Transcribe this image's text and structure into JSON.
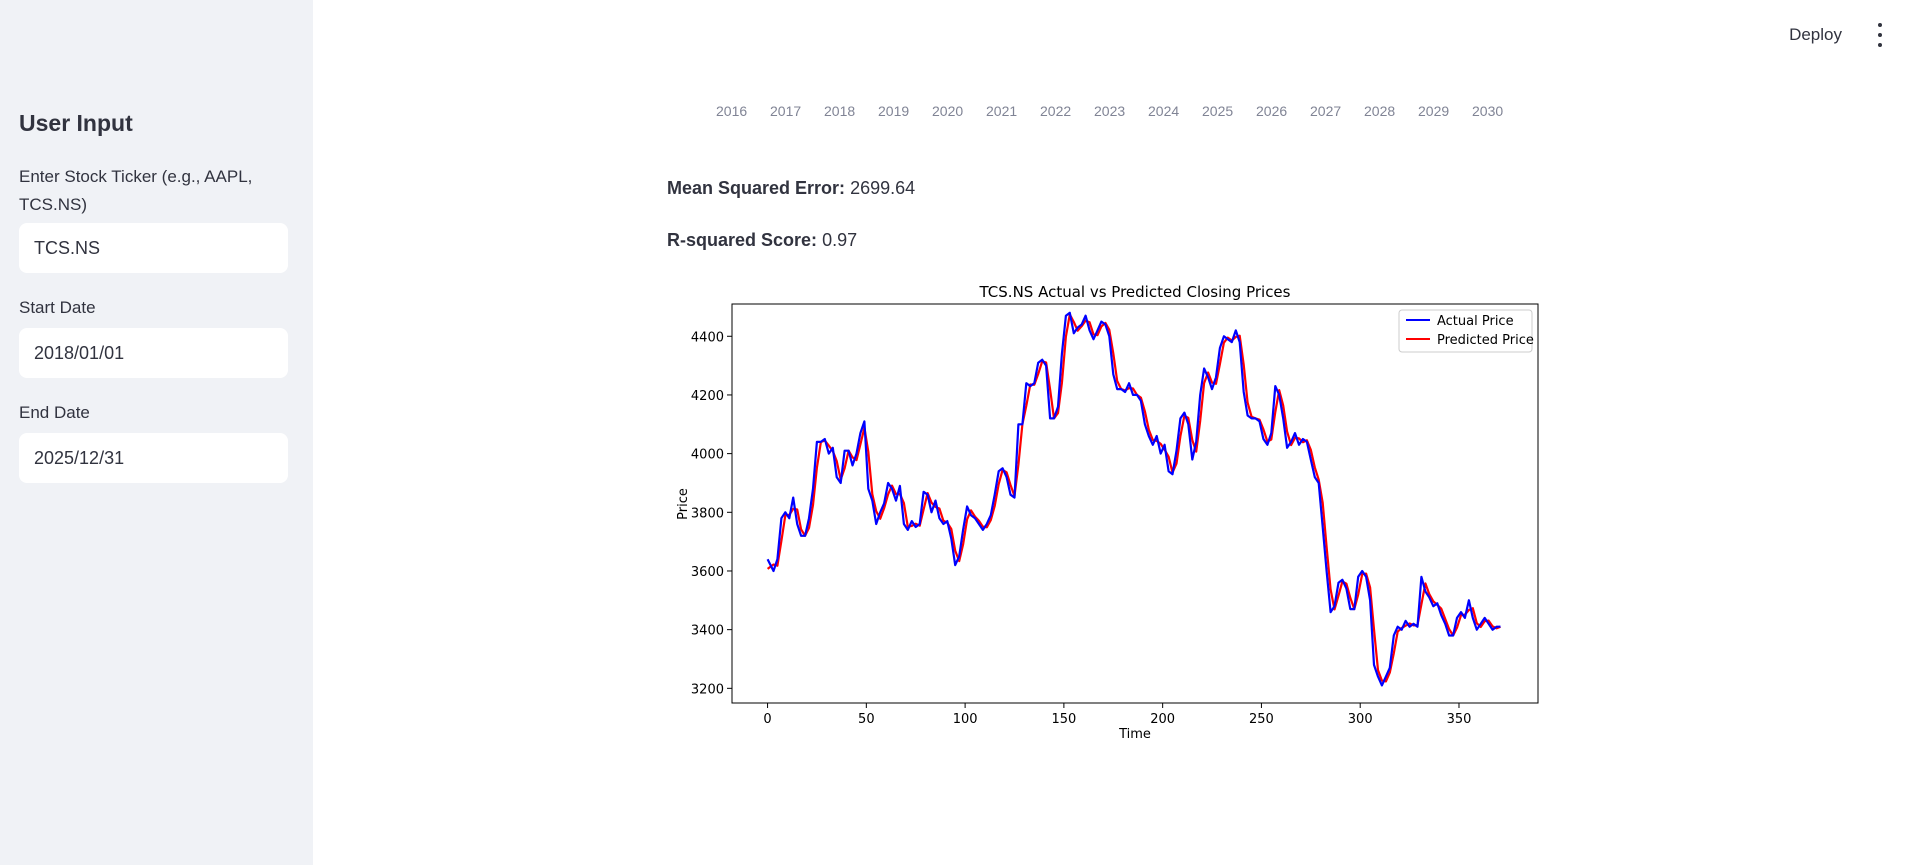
{
  "sidebar": {
    "title": "User Input",
    "ticker_label": "Enter Stock Ticker (e.g., AAPL, TCS.NS)",
    "ticker_value": "TCS.NS",
    "start_label": "Start Date",
    "start_value": "2018/01/01",
    "end_label": "End Date",
    "end_value": "2025/12/31"
  },
  "header": {
    "deploy_label": "Deploy",
    "menu_icon": "kebab-menu-icon"
  },
  "year_options": [
    "2016",
    "2017",
    "2018",
    "2019",
    "2020",
    "2021",
    "2022",
    "2023",
    "2024",
    "2025",
    "2026",
    "2027",
    "2028",
    "2029",
    "2030"
  ],
  "metrics": {
    "mse_label": "Mean Squared Error:",
    "mse_value": "2699.64",
    "r2_label": "R-squared Score:",
    "r2_value": "0.97"
  },
  "chart_data": {
    "type": "line",
    "title": "TCS.NS Actual vs Predicted Closing Prices",
    "xlabel": "Time",
    "ylabel": "Price",
    "xlim": [
      -18,
      390
    ],
    "ylim": [
      3150,
      4510
    ],
    "xticks": [
      0,
      50,
      100,
      150,
      200,
      250,
      300,
      350
    ],
    "yticks": [
      3200,
      3400,
      3600,
      3800,
      4000,
      4200,
      4400
    ],
    "legend_position": "top-right",
    "grid": false,
    "series": [
      {
        "name": "Actual Price",
        "color": "#0000ff"
      },
      {
        "name": "Predicted Price",
        "color": "#ff0000"
      }
    ],
    "actual_points": [
      [
        0,
        3640
      ],
      [
        3,
        3600
      ],
      [
        5,
        3640
      ],
      [
        7,
        3780
      ],
      [
        9,
        3800
      ],
      [
        11,
        3780
      ],
      [
        13,
        3850
      ],
      [
        15,
        3760
      ],
      [
        17,
        3720
      ],
      [
        19,
        3720
      ],
      [
        21,
        3780
      ],
      [
        23,
        3880
      ],
      [
        25,
        4040
      ],
      [
        27,
        4040
      ],
      [
        29,
        4050
      ],
      [
        31,
        4000
      ],
      [
        33,
        4020
      ],
      [
        35,
        3920
      ],
      [
        37,
        3900
      ],
      [
        39,
        4010
      ],
      [
        41,
        4010
      ],
      [
        43,
        3960
      ],
      [
        45,
        4000
      ],
      [
        47,
        4070
      ],
      [
        49,
        4110
      ],
      [
        51,
        3880
      ],
      [
        53,
        3840
      ],
      [
        55,
        3760
      ],
      [
        57,
        3800
      ],
      [
        59,
        3830
      ],
      [
        61,
        3900
      ],
      [
        63,
        3880
      ],
      [
        65,
        3840
      ],
      [
        67,
        3890
      ],
      [
        69,
        3760
      ],
      [
        71,
        3740
      ],
      [
        73,
        3770
      ],
      [
        75,
        3750
      ],
      [
        77,
        3760
      ],
      [
        79,
        3870
      ],
      [
        81,
        3860
      ],
      [
        83,
        3800
      ],
      [
        85,
        3840
      ],
      [
        87,
        3780
      ],
      [
        89,
        3760
      ],
      [
        91,
        3770
      ],
      [
        93,
        3710
      ],
      [
        95,
        3620
      ],
      [
        97,
        3650
      ],
      [
        99,
        3740
      ],
      [
        101,
        3820
      ],
      [
        103,
        3790
      ],
      [
        105,
        3780
      ],
      [
        107,
        3760
      ],
      [
        109,
        3740
      ],
      [
        111,
        3760
      ],
      [
        113,
        3790
      ],
      [
        115,
        3860
      ],
      [
        117,
        3940
      ],
      [
        119,
        3950
      ],
      [
        121,
        3920
      ],
      [
        123,
        3860
      ],
      [
        125,
        3850
      ],
      [
        127,
        4100
      ],
      [
        129,
        4100
      ],
      [
        131,
        4240
      ],
      [
        133,
        4230
      ],
      [
        135,
        4240
      ],
      [
        137,
        4310
      ],
      [
        139,
        4320
      ],
      [
        141,
        4300
      ],
      [
        143,
        4120
      ],
      [
        145,
        4120
      ],
      [
        147,
        4160
      ],
      [
        149,
        4340
      ],
      [
        151,
        4470
      ],
      [
        153,
        4480
      ],
      [
        155,
        4410
      ],
      [
        157,
        4430
      ],
      [
        159,
        4440
      ],
      [
        161,
        4470
      ],
      [
        163,
        4420
      ],
      [
        165,
        4390
      ],
      [
        167,
        4420
      ],
      [
        169,
        4450
      ],
      [
        171,
        4440
      ],
      [
        173,
        4400
      ],
      [
        175,
        4270
      ],
      [
        177,
        4220
      ],
      [
        179,
        4220
      ],
      [
        181,
        4210
      ],
      [
        183,
        4240
      ],
      [
        185,
        4200
      ],
      [
        187,
        4200
      ],
      [
        189,
        4180
      ],
      [
        191,
        4100
      ],
      [
        193,
        4060
      ],
      [
        195,
        4030
      ],
      [
        197,
        4060
      ],
      [
        199,
        4000
      ],
      [
        201,
        4030
      ],
      [
        203,
        3940
      ],
      [
        205,
        3930
      ],
      [
        207,
        4010
      ],
      [
        209,
        4120
      ],
      [
        211,
        4140
      ],
      [
        213,
        4100
      ],
      [
        215,
        3980
      ],
      [
        217,
        4040
      ],
      [
        219,
        4200
      ],
      [
        221,
        4290
      ],
      [
        223,
        4260
      ],
      [
        225,
        4220
      ],
      [
        227,
        4260
      ],
      [
        229,
        4360
      ],
      [
        231,
        4400
      ],
      [
        233,
        4390
      ],
      [
        235,
        4380
      ],
      [
        237,
        4420
      ],
      [
        239,
        4380
      ],
      [
        241,
        4210
      ],
      [
        243,
        4130
      ],
      [
        245,
        4120
      ],
      [
        247,
        4120
      ],
      [
        249,
        4110
      ],
      [
        251,
        4050
      ],
      [
        253,
        4030
      ],
      [
        255,
        4070
      ],
      [
        257,
        4230
      ],
      [
        259,
        4200
      ],
      [
        261,
        4120
      ],
      [
        263,
        4020
      ],
      [
        265,
        4040
      ],
      [
        267,
        4070
      ],
      [
        269,
        4030
      ],
      [
        271,
        4050
      ],
      [
        273,
        4040
      ],
      [
        275,
        3980
      ],
      [
        277,
        3920
      ],
      [
        279,
        3900
      ],
      [
        281,
        3750
      ],
      [
        283,
        3600
      ],
      [
        285,
        3460
      ],
      [
        287,
        3480
      ],
      [
        289,
        3560
      ],
      [
        291,
        3570
      ],
      [
        293,
        3540
      ],
      [
        295,
        3470
      ],
      [
        297,
        3470
      ],
      [
        299,
        3580
      ],
      [
        301,
        3600
      ],
      [
        303,
        3580
      ],
      [
        305,
        3500
      ],
      [
        307,
        3280
      ],
      [
        309,
        3240
      ],
      [
        311,
        3210
      ],
      [
        313,
        3240
      ],
      [
        315,
        3270
      ],
      [
        317,
        3380
      ],
      [
        319,
        3410
      ],
      [
        321,
        3400
      ],
      [
        323,
        3430
      ],
      [
        325,
        3410
      ],
      [
        327,
        3420
      ],
      [
        329,
        3410
      ],
      [
        331,
        3580
      ],
      [
        333,
        3530
      ],
      [
        335,
        3510
      ],
      [
        337,
        3480
      ],
      [
        339,
        3490
      ],
      [
        341,
        3450
      ],
      [
        343,
        3420
      ],
      [
        345,
        3380
      ],
      [
        347,
        3380
      ],
      [
        349,
        3440
      ],
      [
        351,
        3460
      ],
      [
        353,
        3440
      ],
      [
        355,
        3500
      ],
      [
        357,
        3440
      ],
      [
        359,
        3400
      ],
      [
        361,
        3420
      ],
      [
        363,
        3440
      ],
      [
        365,
        3420
      ],
      [
        367,
        3400
      ],
      [
        369,
        3410
      ],
      [
        371,
        3410
      ]
    ]
  }
}
